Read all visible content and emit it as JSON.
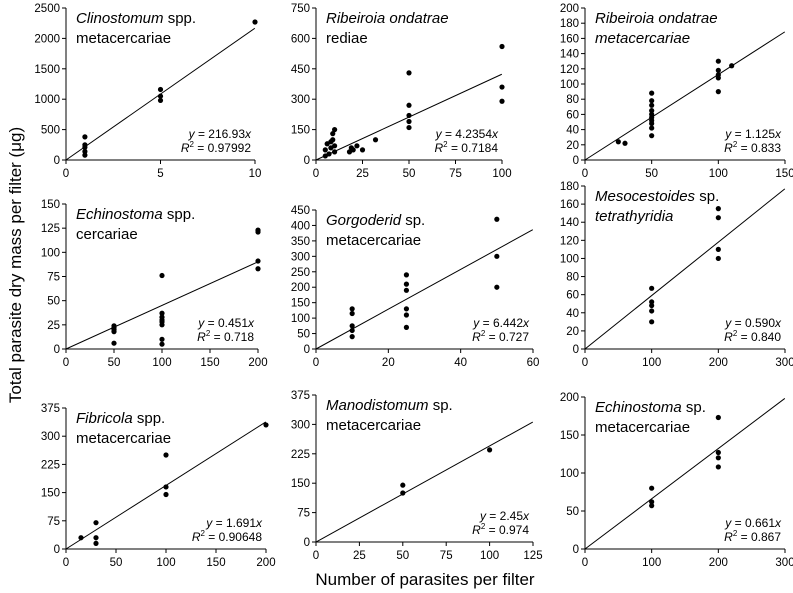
{
  "figure": {
    "ylabel": "Total parasite dry mass per filter (μg)",
    "xlabel": "Number of parasites per filter"
  },
  "chart_data": [
    {
      "type": "scatter",
      "title_italic": "Clinostomum",
      "title_rest": " spp.",
      "title_line2": "metacercariae",
      "xlim": [
        0,
        10
      ],
      "ylim": [
        0,
        2500
      ],
      "xticks": [
        0,
        5,
        10
      ],
      "yticks": [
        0,
        500,
        1000,
        1500,
        2000,
        2500
      ],
      "x": [
        1,
        1,
        1,
        1,
        1,
        5,
        5,
        5,
        10
      ],
      "y": [
        80,
        140,
        210,
        250,
        380,
        980,
        1050,
        1160,
        2270
      ],
      "slope": 216.93,
      "eq_val": " = 216.93",
      "r2_val": " = 0.97992"
    },
    {
      "type": "scatter",
      "title_italic": "Ribeiroia ondatrae",
      "title_rest": "",
      "title_line2": "rediae",
      "xlim": [
        0,
        100
      ],
      "ylim": [
        0,
        750
      ],
      "xticks": [
        0,
        25,
        50,
        75,
        100
      ],
      "yticks": [
        0,
        150,
        300,
        450,
        600,
        750
      ],
      "x": [
        5,
        5,
        6,
        7,
        8,
        8,
        9,
        9,
        10,
        10,
        10,
        18,
        19,
        20,
        22,
        25,
        32,
        50,
        50,
        50,
        50,
        50,
        100,
        100,
        100
      ],
      "y": [
        20,
        50,
        80,
        30,
        60,
        90,
        100,
        130,
        40,
        70,
        150,
        40,
        60,
        50,
        70,
        50,
        100,
        160,
        190,
        220,
        270,
        430,
        290,
        360,
        560
      ],
      "slope": 4.2354,
      "eq_val": " = 4.2354",
      "r2_val": " = 0.7184"
    },
    {
      "type": "scatter",
      "title_italic": "Ribeiroia ondatrae",
      "title_rest": "",
      "title_line2": "metacercariae",
      "title_line2_italic": true,
      "xlim": [
        0,
        150
      ],
      "ylim": [
        0,
        200
      ],
      "xticks": [
        0,
        50,
        100,
        150
      ],
      "yticks": [
        0,
        20,
        40,
        60,
        80,
        100,
        120,
        140,
        160,
        180,
        200
      ],
      "x": [
        25,
        30,
        50,
        50,
        50,
        50,
        50,
        50,
        50,
        50,
        50,
        50,
        100,
        100,
        100,
        100,
        100,
        110
      ],
      "y": [
        24,
        22,
        32,
        42,
        48,
        52,
        56,
        60,
        65,
        72,
        78,
        88,
        90,
        108,
        112,
        118,
        130,
        124
      ],
      "slope": 1.125,
      "eq_val": " = 1.125",
      "r2_val": " = 0.833"
    },
    {
      "type": "scatter",
      "title_italic": "Echinostoma",
      "title_rest": " spp.",
      "title_line2": "cercariae",
      "xlim": [
        0,
        200
      ],
      "ylim": [
        0,
        150
      ],
      "xticks": [
        0,
        50,
        100,
        150,
        200
      ],
      "yticks": [
        0,
        25,
        50,
        75,
        100,
        125,
        150
      ],
      "x": [
        50,
        50,
        50,
        50,
        50,
        100,
        100,
        100,
        100,
        100,
        100,
        100,
        100,
        200,
        200,
        200,
        200
      ],
      "y": [
        6,
        18,
        20,
        22,
        24,
        5,
        10,
        25,
        28,
        30,
        33,
        37,
        76,
        83,
        91,
        121,
        123
      ],
      "slope": 0.451,
      "eq_val": " = 0.451",
      "r2_val": " = 0.718"
    },
    {
      "type": "scatter",
      "title_italic": "Gorgoderid",
      "title_rest": " sp.",
      "title_line2": "metacercariae",
      "xlim": [
        0,
        60
      ],
      "ylim": [
        0,
        450
      ],
      "xticks": [
        0,
        20,
        40,
        60
      ],
      "yticks": [
        0,
        50,
        100,
        150,
        200,
        250,
        300,
        350,
        400,
        450
      ],
      "x": [
        10,
        10,
        10,
        10,
        10,
        25,
        25,
        25,
        25,
        25,
        25,
        50,
        50,
        50
      ],
      "y": [
        40,
        60,
        75,
        115,
        130,
        70,
        110,
        130,
        190,
        210,
        240,
        200,
        300,
        420
      ],
      "slope": 6.442,
      "eq_val": " = 6.442",
      "r2_val": " = 0.727"
    },
    {
      "type": "scatter",
      "title_italic": "Mesocestoides",
      "title_rest": " sp.",
      "title_line2": "tetrathyridia",
      "title_line2_italic": true,
      "xlim": [
        0,
        300
      ],
      "ylim": [
        0,
        180
      ],
      "xticks": [
        0,
        100,
        200,
        300
      ],
      "yticks": [
        0,
        20,
        40,
        60,
        80,
        100,
        120,
        140,
        160,
        180
      ],
      "x": [
        100,
        100,
        100,
        100,
        100,
        200,
        200,
        200,
        200
      ],
      "y": [
        30,
        42,
        48,
        52,
        67,
        100,
        110,
        145,
        155
      ],
      "slope": 0.59,
      "eq_val": " = 0.590",
      "r2_val": " = 0.840"
    },
    {
      "type": "scatter",
      "title_italic": "Fibricola",
      "title_rest": " spp.",
      "title_line2": "metacercariae",
      "xlim": [
        0,
        200
      ],
      "ylim": [
        0,
        375
      ],
      "xticks": [
        0,
        50,
        100,
        150,
        200
      ],
      "yticks": [
        0,
        75,
        150,
        225,
        300,
        375
      ],
      "x": [
        15,
        30,
        30,
        30,
        100,
        100,
        100,
        200
      ],
      "y": [
        30,
        15,
        30,
        70,
        145,
        165,
        250,
        330
      ],
      "slope": 1.691,
      "eq_val": " = 1.691",
      "r2_val": " = 0.90648"
    },
    {
      "type": "scatter",
      "title_italic": "Manodistomum",
      "title_rest": " sp.",
      "title_line2": "metacercariae",
      "xlim": [
        0,
        125
      ],
      "ylim": [
        0,
        375
      ],
      "xticks": [
        0,
        25,
        50,
        75,
        100,
        125
      ],
      "yticks": [
        0,
        75,
        150,
        225,
        300,
        375
      ],
      "x": [
        50,
        50,
        100
      ],
      "y": [
        125,
        145,
        235
      ],
      "slope": 2.45,
      "eq_val": " = 2.45",
      "r2_val": " = 0.974"
    },
    {
      "type": "scatter",
      "title_italic": "Echinostoma",
      "title_rest": " sp.",
      "title_line2": "metacercariae",
      "xlim": [
        0,
        300
      ],
      "ylim": [
        0,
        200
      ],
      "xticks": [
        0,
        100,
        200,
        300
      ],
      "yticks": [
        0,
        50,
        100,
        150,
        200
      ],
      "x": [
        100,
        100,
        100,
        200,
        200,
        200,
        200
      ],
      "y": [
        57,
        62,
        80,
        108,
        120,
        127,
        173
      ],
      "slope": 0.661,
      "eq_val": " = 0.661",
      "r2_val": " = 0.867"
    }
  ]
}
